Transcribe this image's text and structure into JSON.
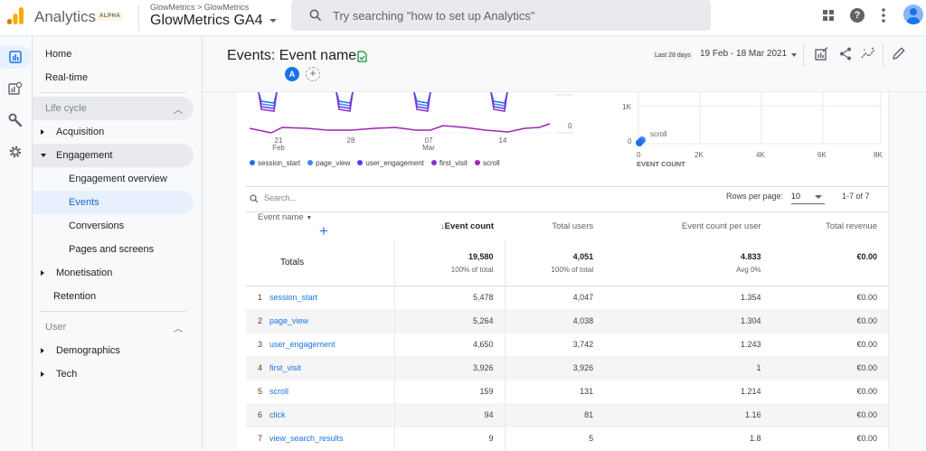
{
  "topbar": {
    "brand": "Analytics",
    "badge": "ALPHA",
    "breadcrumb": "GlowMetrics > GlowMetrics",
    "property": "GlowMetrics GA4",
    "search_placeholder": "Try searching \"how to set up Analytics\"",
    "help_glyph": "?"
  },
  "rail": {
    "items": [
      "reports-icon",
      "explore-icon",
      "configure-icon",
      "admin-icon"
    ],
    "active": 0
  },
  "nav": {
    "home": "Home",
    "realtime": "Real-time",
    "lifecycle": "Life cycle",
    "acquisition": "Acquisition",
    "engagement": "Engagement",
    "engagement_overview": "Engagement overview",
    "events": "Events",
    "conversions": "Conversions",
    "pages_screens": "Pages and screens",
    "monetisation": "Monetisation",
    "retention": "Retention",
    "user": "User",
    "demographics": "Demographics",
    "tech": "Tech"
  },
  "header": {
    "title": "Events: Event name",
    "comparison_badge": "A",
    "add_comparison": "+",
    "range_label": "Last 28 days",
    "range": "19 Feb - 18 Mar 2021"
  },
  "line_chart": {
    "x_ticks": [
      {
        "day": "21",
        "month": "Feb"
      },
      {
        "day": "28",
        "month": ""
      },
      {
        "day": "07",
        "month": "Mar"
      },
      {
        "day": "14",
        "month": ""
      }
    ],
    "y_zero": "0",
    "legend": [
      {
        "name": "session_start",
        "color": "#1a73e8"
      },
      {
        "name": "page_view",
        "color": "#4285f4"
      },
      {
        "name": "user_engagement",
        "color": "#5e35f5"
      },
      {
        "name": "first_visit",
        "color": "#8430ce"
      },
      {
        "name": "scroll",
        "color": "#9c27b0"
      }
    ]
  },
  "scatter_chart": {
    "y_ticks": [
      "1K",
      "0"
    ],
    "x_ticks": [
      "0",
      "2K",
      "4K",
      "6K",
      "8K"
    ],
    "x_label": "EVENT COUNT",
    "point_label": "scroll"
  },
  "table": {
    "search_placeholder": "Search...",
    "rows_per_page_label": "Rows per page:",
    "rows_per_page": "10",
    "pagination": "1-7 of 7",
    "columns": [
      "Event name",
      "Event count",
      "Total users",
      "Event count per user",
      "Total revenue"
    ],
    "sort_arrow": "↓",
    "totals": {
      "label": "Totals",
      "event_count": "19,580",
      "event_count_sub": "100% of total",
      "total_users": "4,051",
      "total_users_sub": "100% of total",
      "per_user": "4.833",
      "per_user_sub": "Avg 0%",
      "revenue": "€0.00"
    },
    "rows": [
      {
        "idx": "1",
        "name": "session_start",
        "event_count": "5,478",
        "total_users": "4,047",
        "per_user": "1.354",
        "revenue": "€0.00"
      },
      {
        "idx": "2",
        "name": "page_view",
        "event_count": "5,264",
        "total_users": "4,038",
        "per_user": "1.304",
        "revenue": "€0.00"
      },
      {
        "idx": "3",
        "name": "user_engagement",
        "event_count": "4,650",
        "total_users": "3,742",
        "per_user": "1.243",
        "revenue": "€0.00"
      },
      {
        "idx": "4",
        "name": "first_visit",
        "event_count": "3,926",
        "total_users": "3,926",
        "per_user": "1",
        "revenue": "€0.00"
      },
      {
        "idx": "5",
        "name": "scroll",
        "event_count": "159",
        "total_users": "131",
        "per_user": "1.214",
        "revenue": "€0.00"
      },
      {
        "idx": "6",
        "name": "click",
        "event_count": "94",
        "total_users": "81",
        "per_user": "1.16",
        "revenue": "€0.00"
      },
      {
        "idx": "7",
        "name": "view_search_results",
        "event_count": "9",
        "total_users": "5",
        "per_user": "1.8",
        "revenue": "€0.00"
      }
    ]
  }
}
